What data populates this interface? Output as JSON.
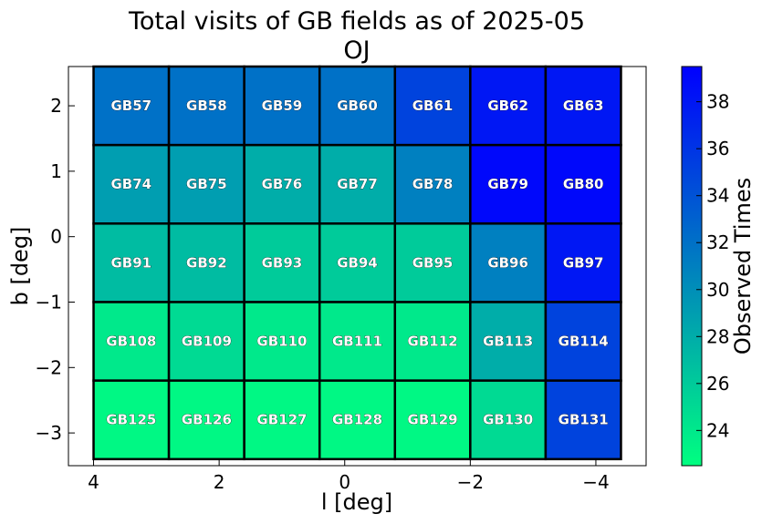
{
  "chart_data": {
    "type": "heatmap",
    "title": "Total visits of GB fields as of 2025-05",
    "subtitle": "OJ",
    "xlabel": "l [deg]",
    "ylabel": "b [deg]",
    "xlim": [
      4.4,
      -4.8
    ],
    "ylim": [
      -3.5,
      2.6
    ],
    "xticks": [
      4,
      2,
      0,
      -2,
      -4
    ],
    "xtick_labels": [
      "4",
      "2",
      "0",
      "−2",
      "−4"
    ],
    "yticks": [
      2,
      1,
      0,
      -1,
      -2,
      -3
    ],
    "ytick_labels": [
      "2",
      "1",
      "0",
      "−1",
      "−2",
      "−3"
    ],
    "colorbar": {
      "label": "Observed Times",
      "range": [
        22.5,
        39.5
      ],
      "ticks": [
        24,
        26,
        28,
        30,
        32,
        34,
        36,
        38
      ],
      "colormap": "winter_r",
      "color_low": "#00ff80",
      "color_high": "#0000ff"
    },
    "grid": false,
    "field_layout": {
      "columns_l_edges": [
        4.0,
        2.8,
        1.6,
        0.4,
        -0.8,
        -2.0,
        -3.2,
        -4.4
      ],
      "rows_b_edges": [
        2.6,
        1.4,
        0.2,
        -1.0,
        -2.2,
        -3.4
      ]
    },
    "fields": [
      [
        "GB57",
        "GB58",
        "GB59",
        "GB60",
        "GB61",
        "GB62",
        "GB63"
      ],
      [
        "GB74",
        "GB75",
        "GB76",
        "GB77",
        "GB78",
        "GB79",
        "GB80"
      ],
      [
        "GB91",
        "GB92",
        "GB93",
        "GB94",
        "GB95",
        "GB96",
        "GB97"
      ],
      [
        "GB108",
        "GB109",
        "GB110",
        "GB111",
        "GB112",
        "GB113",
        "GB114"
      ],
      [
        "GB125",
        "GB126",
        "GB127",
        "GB128",
        "GB129",
        "GB130",
        "GB131"
      ]
    ],
    "values": [
      [
        32,
        32,
        32,
        32,
        35,
        38,
        38
      ],
      [
        29,
        29,
        28,
        28,
        31,
        39,
        39
      ],
      [
        27,
        27,
        26,
        26,
        26,
        31,
        38
      ],
      [
        24,
        25,
        24,
        24,
        24,
        28,
        35
      ],
      [
        23,
        23,
        23,
        23,
        23,
        25,
        35
      ]
    ]
  }
}
